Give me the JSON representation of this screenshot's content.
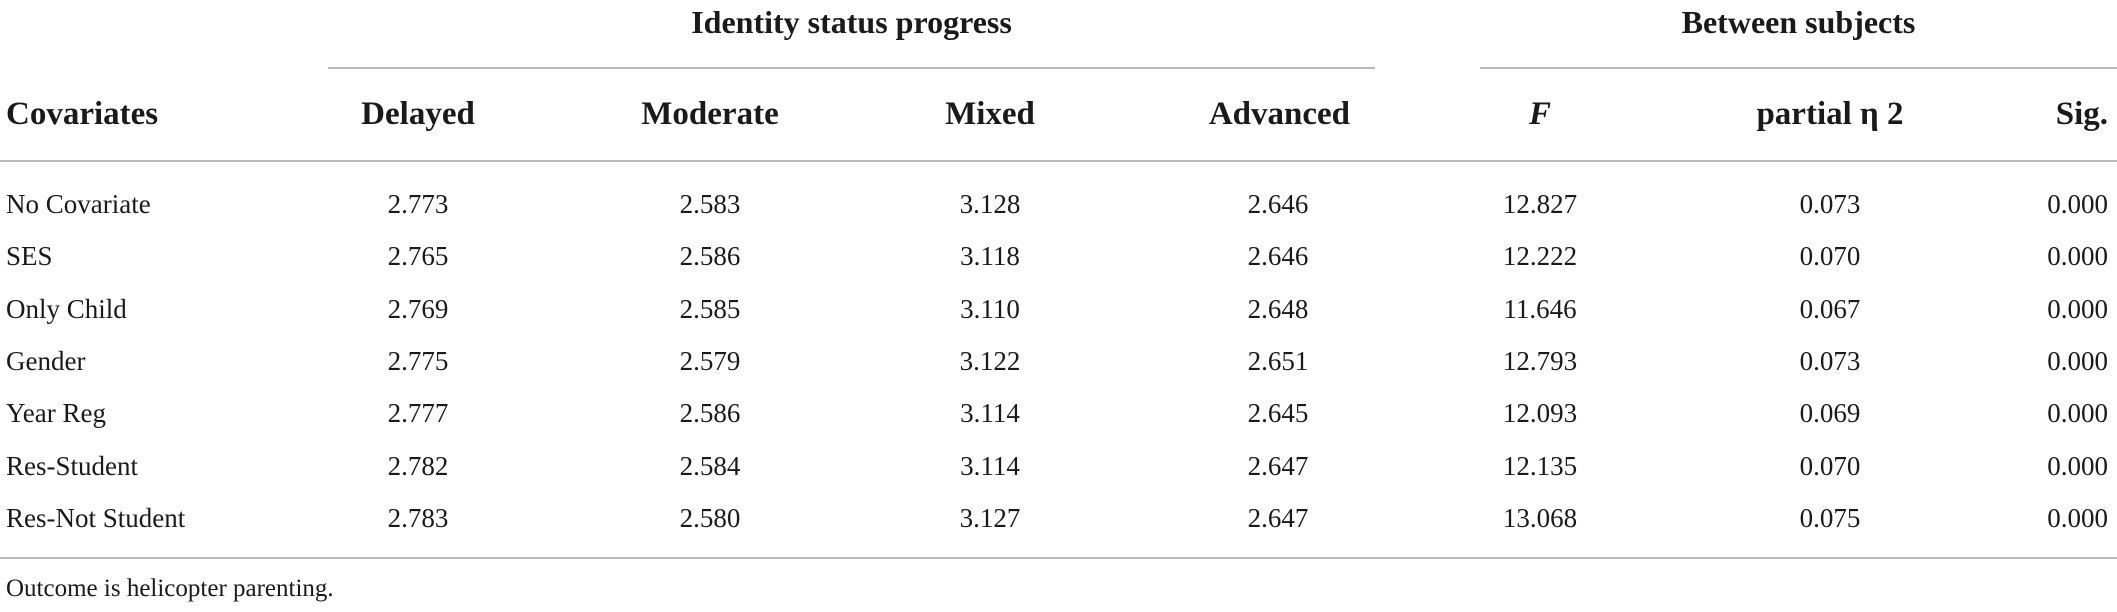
{
  "table": {
    "group_headers": {
      "identity": "Identity status progress",
      "between": "Between subjects"
    },
    "columns": {
      "covariates": "Covariates",
      "delayed": "Delayed",
      "moderate": "Moderate",
      "mixed": "Mixed",
      "advanced": "Advanced",
      "f": "F",
      "eta": "partial η 2",
      "sig": "Sig."
    },
    "rows": [
      {
        "covariate": "No Covariate",
        "delayed": "2.773",
        "moderate": "2.583",
        "mixed": "3.128",
        "advanced": "2.646",
        "f": "12.827",
        "eta": "0.073",
        "sig": "0.000"
      },
      {
        "covariate": "SES",
        "delayed": "2.765",
        "moderate": "2.586",
        "mixed": "3.118",
        "advanced": "2.646",
        "f": "12.222",
        "eta": "0.070",
        "sig": "0.000"
      },
      {
        "covariate": "Only Child",
        "delayed": "2.769",
        "moderate": "2.585",
        "mixed": "3.110",
        "advanced": "2.648",
        "f": "11.646",
        "eta": "0.067",
        "sig": "0.000"
      },
      {
        "covariate": "Gender",
        "delayed": "2.775",
        "moderate": "2.579",
        "mixed": "3.122",
        "advanced": "2.651",
        "f": "12.793",
        "eta": "0.073",
        "sig": "0.000"
      },
      {
        "covariate": "Year Reg",
        "delayed": "2.777",
        "moderate": "2.586",
        "mixed": "3.114",
        "advanced": "2.645",
        "f": "12.093",
        "eta": "0.069",
        "sig": "0.000"
      },
      {
        "covariate": "Res-Student",
        "delayed": "2.782",
        "moderate": "2.584",
        "mixed": "3.114",
        "advanced": "2.647",
        "f": "12.135",
        "eta": "0.070",
        "sig": "0.000"
      },
      {
        "covariate": "Res-Not Student",
        "delayed": "2.783",
        "moderate": "2.580",
        "mixed": "3.127",
        "advanced": "2.647",
        "f": "13.068",
        "eta": "0.075",
        "sig": "0.000"
      }
    ],
    "footnote": "Outcome is helicopter parenting."
  }
}
